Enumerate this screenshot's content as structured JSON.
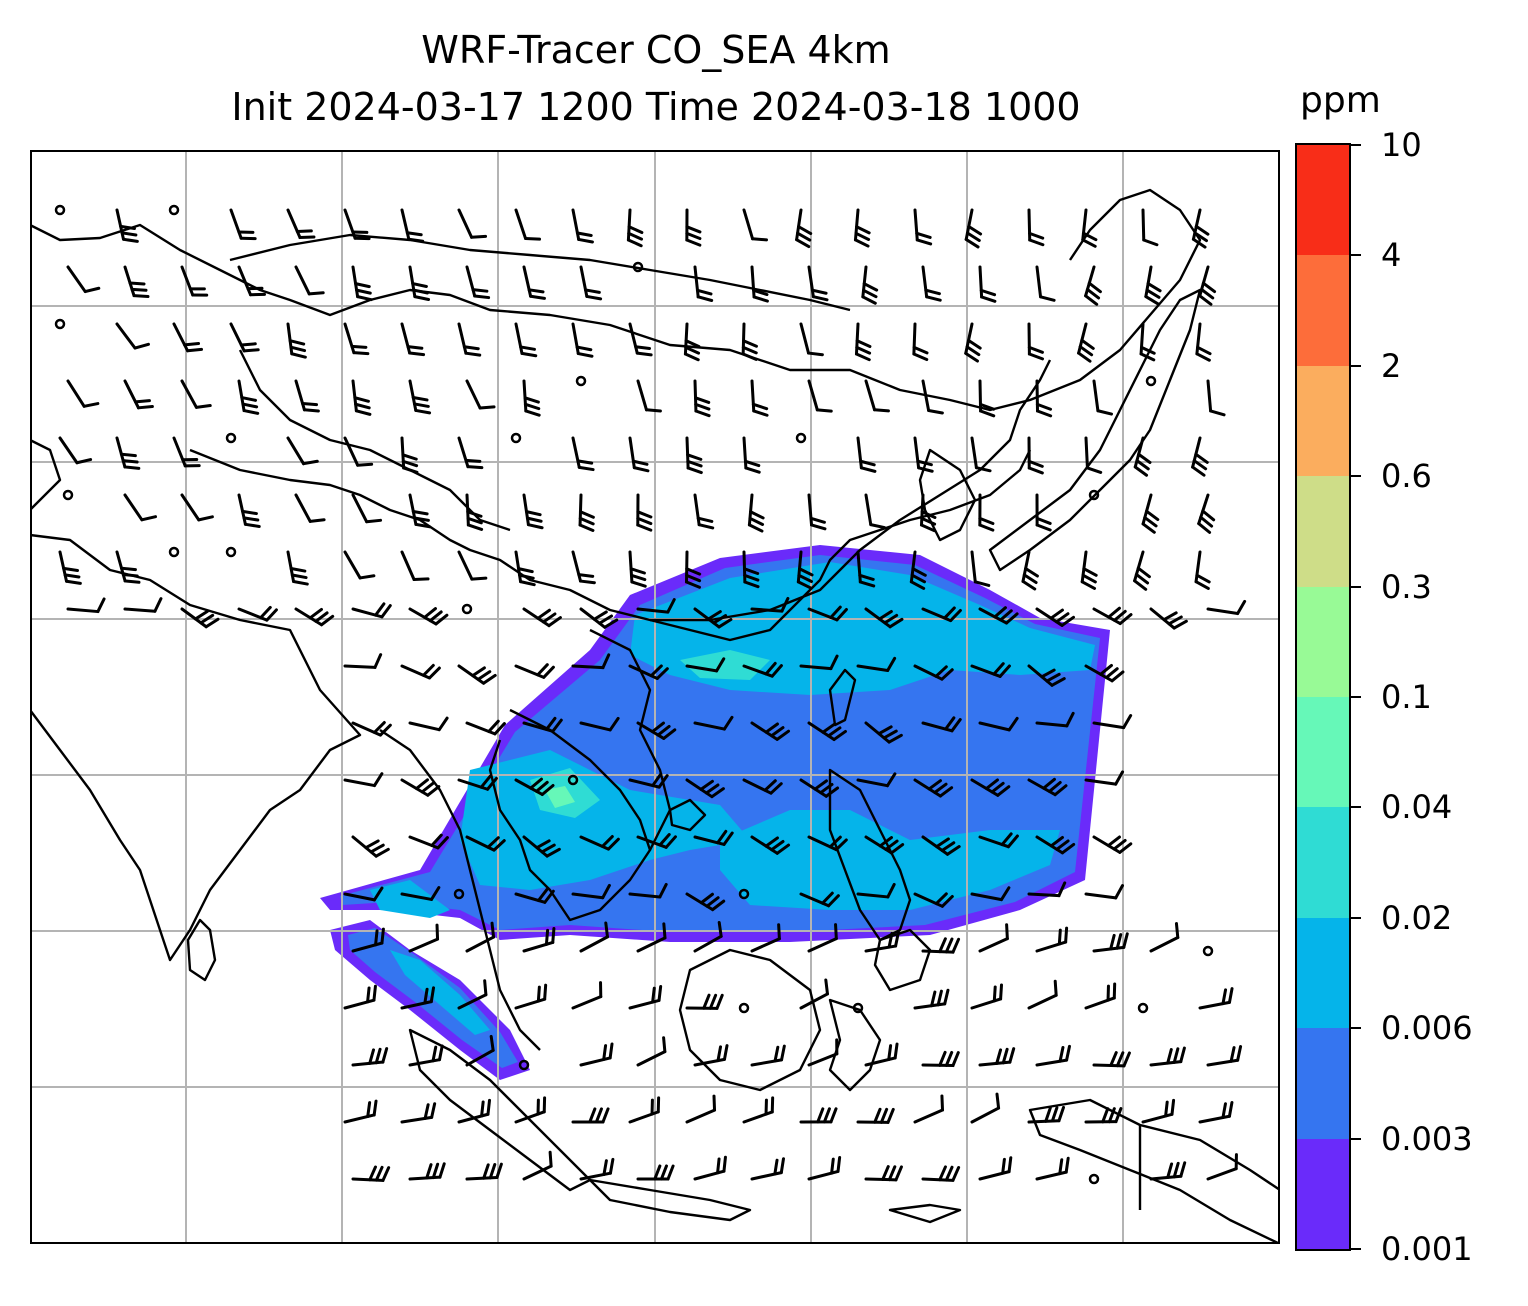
{
  "title": {
    "line1": "WRF-Tracer CO_SEA 4km",
    "line2": "Init 2024-03-17 1200 Time 2024-03-18 1000"
  },
  "colorbar": {
    "unit": "ppm",
    "levels": [
      "0.001",
      "0.003",
      "0.006",
      "0.02",
      "0.04",
      "0.1",
      "0.3",
      "0.6",
      "2",
      "4",
      "10"
    ],
    "colors": [
      "#6a2bfa",
      "#3575f0",
      "#05b4ea",
      "#2fdcd4",
      "#66f8b8",
      "#98fa96",
      "#cedd88",
      "#fbad5e",
      "#fd6d3a",
      "#f82d18"
    ]
  },
  "map": {
    "field": "CO tracer concentration with wind barbs",
    "plume_colors": {
      "edge": "#6a2bfa",
      "low": "#3575f0",
      "mid": "#05b4ea",
      "high": "#2fdcd4",
      "peak": "#66f8b8"
    },
    "gridline_color": "#b4b4b4",
    "coastline_color": "#000000"
  }
}
